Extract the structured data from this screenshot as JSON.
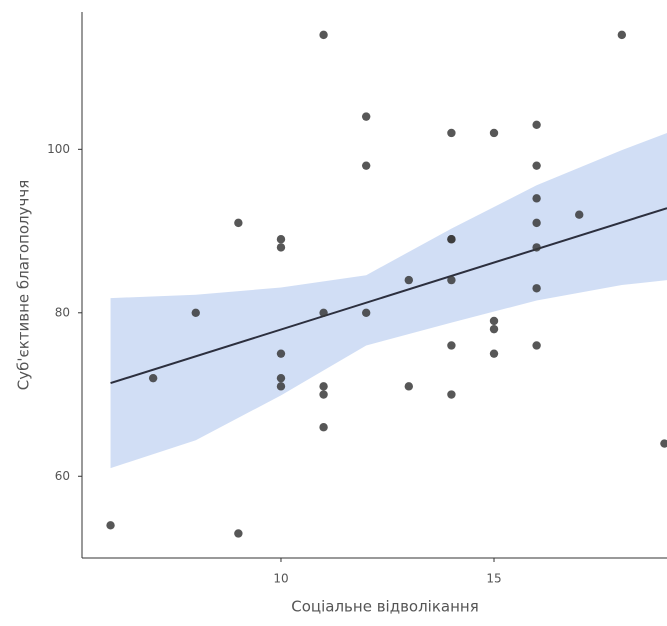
{
  "chart_data": {
    "type": "scatter",
    "x_label": "Соціальне відволікання",
    "y_label": "Суб'єктивне благополуччя",
    "xlim": [
      5.33,
      19.06
    ],
    "ylim": [
      50,
      116.8
    ],
    "xticks": [
      10,
      15
    ],
    "yticks": [
      60,
      80,
      100
    ],
    "point_color": "#3a3a3a",
    "band_color": "#c9d8f3",
    "line_color": "#2c2f3e",
    "x": [
      6,
      7,
      8,
      9,
      9,
      10,
      10,
      10,
      10,
      10,
      11,
      11,
      11,
      11,
      11,
      12,
      12,
      12,
      13,
      13,
      14,
      14,
      14,
      14,
      14,
      14,
      15,
      15,
      15,
      15,
      16,
      16,
      16,
      16,
      16,
      16,
      16,
      17,
      18,
      19
    ],
    "y": [
      54,
      72,
      80,
      91,
      53,
      89,
      88,
      75,
      72,
      71,
      114,
      80,
      71,
      70,
      66,
      104,
      98,
      80,
      84,
      71,
      102,
      89,
      89,
      84,
      76,
      70,
      102,
      79,
      78,
      75,
      103,
      98,
      94,
      91,
      88,
      83,
      76,
      92,
      114,
      64
    ],
    "fit": {
      "x": [
        6,
        19.06
      ],
      "y": [
        71.4,
        92.8
      ]
    },
    "band": {
      "x": [
        6,
        8,
        10,
        12,
        14,
        16,
        18,
        19.06
      ],
      "lower": [
        61.0,
        64.4,
        69.9,
        76.0,
        78.8,
        81.5,
        83.4,
        84.0
      ],
      "upper": [
        81.8,
        82.2,
        83.1,
        84.6,
        90.3,
        95.6,
        99.9,
        102.0
      ]
    }
  }
}
